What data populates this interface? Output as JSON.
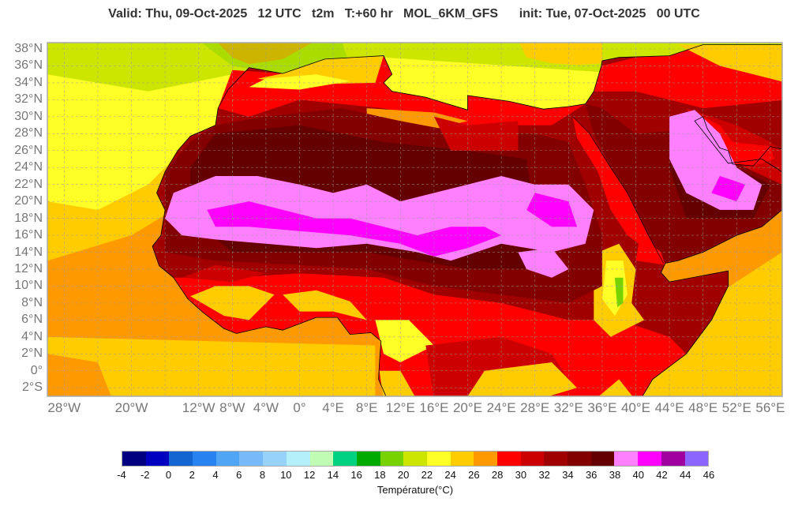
{
  "title": {
    "valid": "Valid: Thu, 09-Oct-2025   12 UTC   t2m   T:+60 hr   MOL_6KM_GFS      init: Tue, 07-Oct-2025   00 UTC"
  },
  "map": {
    "variable": "t2m",
    "extent": {
      "lon": [
        -30,
        57.4
      ],
      "lat": [
        -3,
        38.8
      ]
    },
    "lat_labels": [
      "38°N",
      "36°N",
      "34°N",
      "32°N",
      "30°N",
      "28°N",
      "26°N",
      "24°N",
      "22°N",
      "20°N",
      "18°N",
      "16°N",
      "14°N",
      "12°N",
      "10°N",
      "8°N",
      "6°N",
      "4°N",
      "2°N",
      "0°",
      "2°S"
    ],
    "lat_values": [
      38,
      36,
      34,
      32,
      30,
      28,
      26,
      24,
      22,
      20,
      18,
      16,
      14,
      12,
      10,
      8,
      6,
      4,
      2,
      0,
      -2
    ],
    "lon_labels": [
      "28°W",
      "20°W",
      "12°W",
      "8°W",
      "4°W",
      "0°",
      "4°E",
      "8°E",
      "12°E",
      "16°E",
      "20°E",
      "24°E",
      "28°E",
      "32°E",
      "36°E",
      "40°E",
      "44°E",
      "48°E",
      "52°E",
      "56°E"
    ],
    "lon_values": [
      -28,
      -20,
      -12,
      -8,
      -4,
      0,
      4,
      8,
      12,
      16,
      20,
      24,
      28,
      32,
      36,
      40,
      44,
      48,
      52,
      56
    ]
  },
  "colorbar": {
    "title": "Température(°C)",
    "ticks": [
      "-4",
      "-2",
      "0",
      "2",
      "4",
      "6",
      "8",
      "10",
      "12",
      "14",
      "16",
      "18",
      "20",
      "22",
      "24",
      "26",
      "28",
      "30",
      "32",
      "34",
      "36",
      "38",
      "40",
      "42",
      "44",
      "46"
    ],
    "colors": [
      "#000080",
      "#0000c0",
      "#1464d2",
      "#2882f0",
      "#50a5f5",
      "#78b9fa",
      "#96d2fa",
      "#b4f0fa",
      "#c0fcb4",
      "#00d282",
      "#00aa00",
      "#78d200",
      "#cce600",
      "#ffff28",
      "#ffcc00",
      "#ff9900",
      "#ff0000",
      "#cc0000",
      "#a00000",
      "#820000",
      "#640000",
      "#ff80ff",
      "#ff00ff",
      "#a000a0",
      "#8c64ff"
    ]
  }
}
